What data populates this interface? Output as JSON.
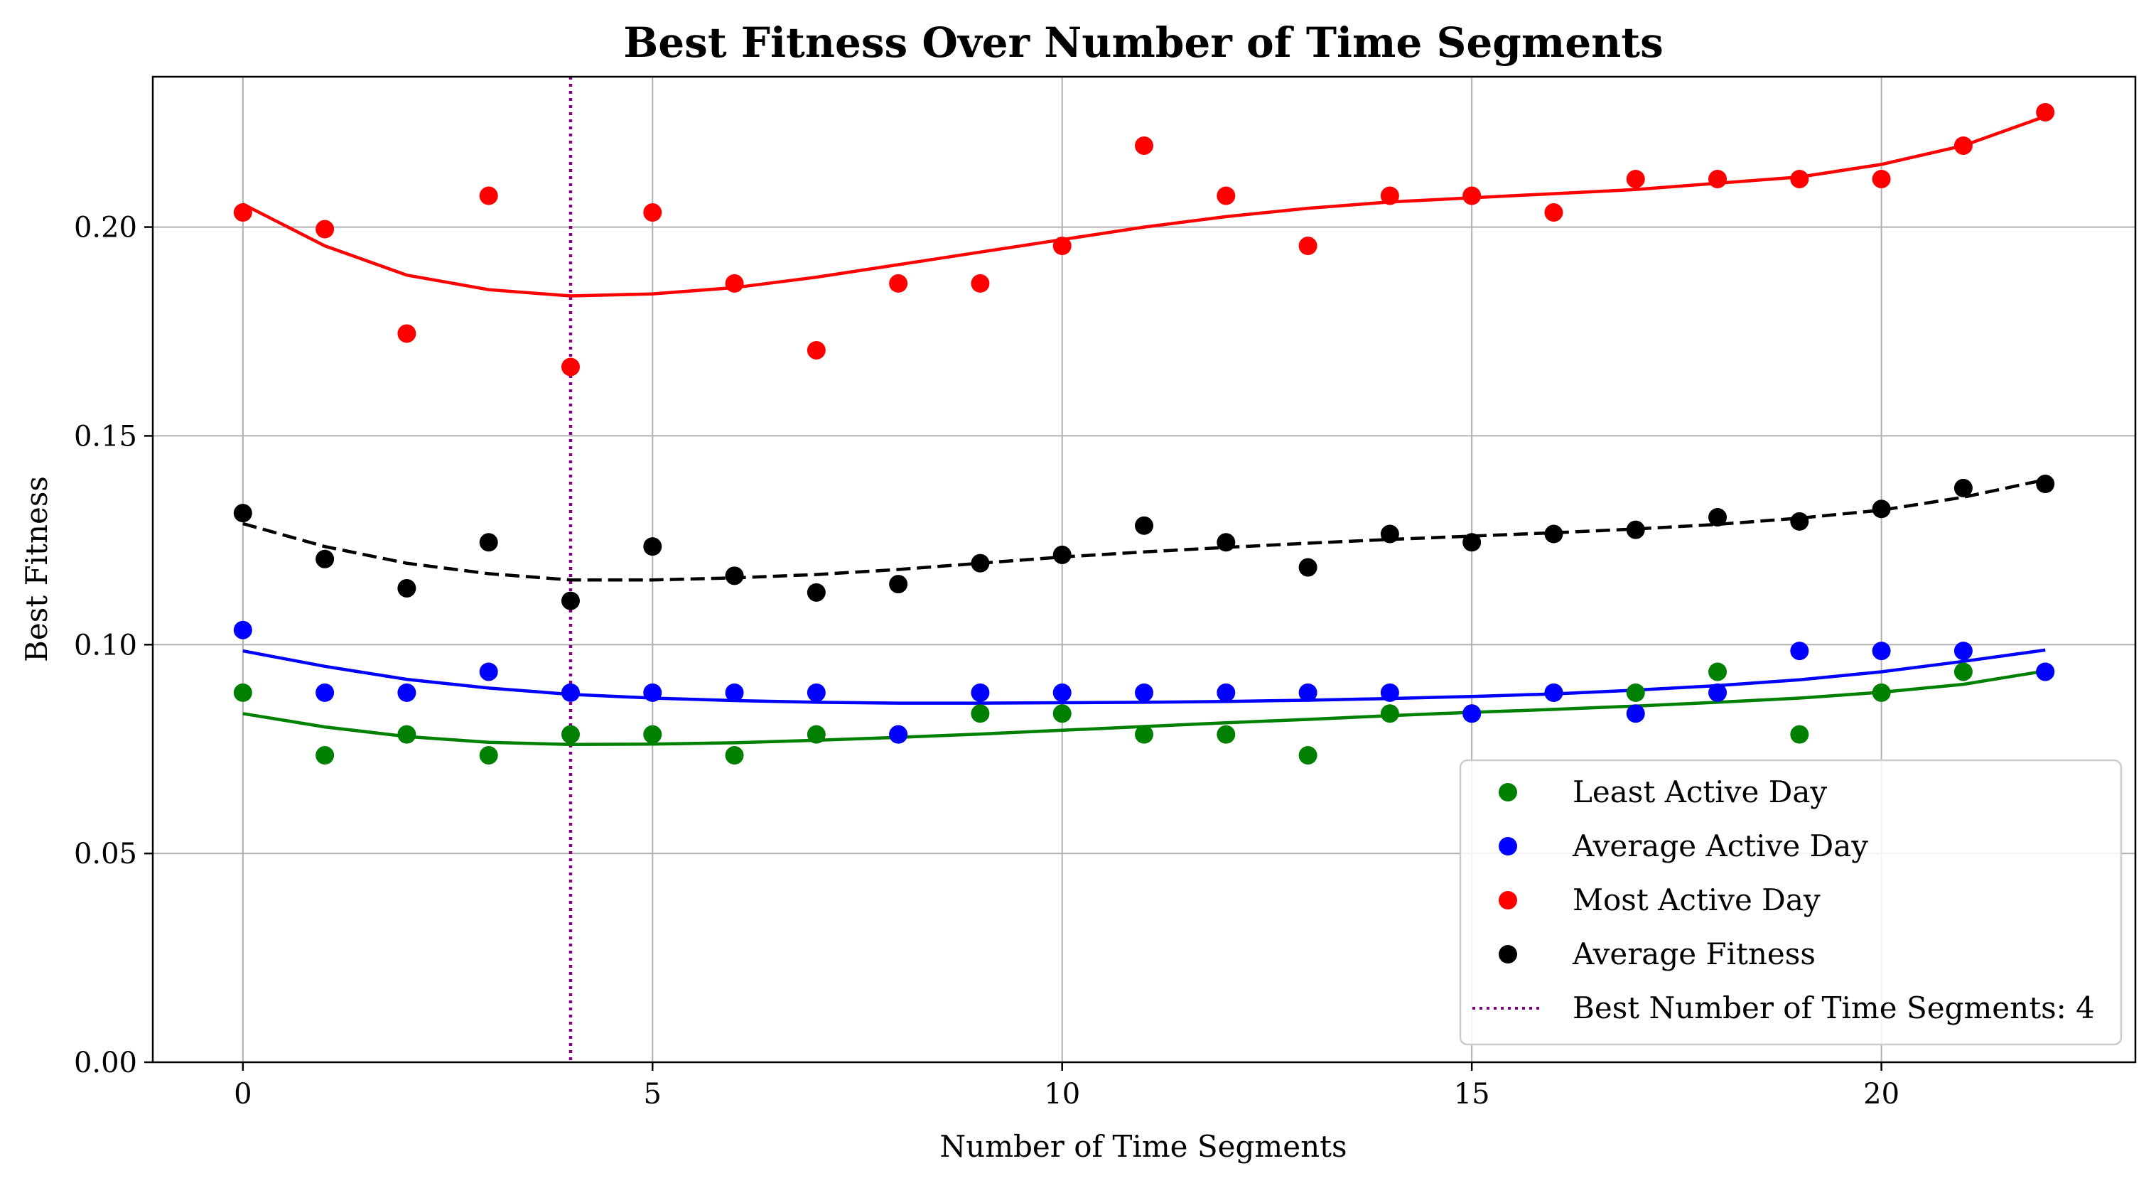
{
  "chart_data": {
    "type": "scatter",
    "title": "Best Fitness Over Number of Time Segments",
    "xlabel": "Number of Time Segments",
    "ylabel": "Best Fitness",
    "xlim": [
      -1.1,
      23.1
    ],
    "ylim": [
      0.0,
      0.236
    ],
    "xticks": [
      0,
      5,
      10,
      15,
      20
    ],
    "yticks": [
      0.0,
      0.05,
      0.1,
      0.15,
      0.2
    ],
    "xtick_labels": [
      "0",
      "5",
      "10",
      "15",
      "20"
    ],
    "ytick_labels": [
      "0.00",
      "0.05",
      "0.10",
      "0.15",
      "0.20"
    ],
    "grid": true,
    "legend_position": "lower-right",
    "x": [
      0,
      1,
      2,
      3,
      4,
      5,
      6,
      7,
      8,
      9,
      10,
      11,
      12,
      13,
      14,
      15,
      16,
      17,
      18,
      19,
      20,
      21,
      22
    ],
    "series": [
      {
        "name": "Least Active Day",
        "color": "#008000",
        "marker": "circle",
        "values": [
          0.0885,
          0.0735,
          0.0785,
          0.0735,
          0.0785,
          0.0785,
          0.0735,
          0.0785,
          0.0785,
          0.0835,
          0.0835,
          0.0785,
          0.0785,
          0.0735,
          0.0835,
          0.0835,
          0.0885,
          0.0885,
          0.0935,
          0.0785,
          0.0885,
          0.0935,
          0.0935
        ],
        "trend_values": [
          0.0835,
          0.0803,
          0.078,
          0.0766,
          0.0761,
          0.0762,
          0.0765,
          0.0771,
          0.0778,
          0.0786,
          0.0795,
          0.0804,
          0.0813,
          0.0821,
          0.083,
          0.0838,
          0.0845,
          0.0853,
          0.0862,
          0.0872,
          0.0886,
          0.0905,
          0.0937
        ],
        "trend_style": "solid"
      },
      {
        "name": "Average Active Day",
        "color": "#0000ff",
        "marker": "circle",
        "values": [
          0.1035,
          0.0885,
          0.0885,
          0.0935,
          0.0885,
          0.0885,
          0.0885,
          0.0885,
          0.0785,
          0.0885,
          0.0885,
          0.0885,
          0.0885,
          0.0885,
          0.0885,
          0.0835,
          0.0885,
          0.0835,
          0.0885,
          0.0985,
          0.0985,
          0.0985,
          0.0935
        ],
        "trend_values": [
          0.0985,
          0.0948,
          0.0917,
          0.0896,
          0.0881,
          0.0872,
          0.0866,
          0.0862,
          0.086,
          0.086,
          0.0861,
          0.0862,
          0.0864,
          0.0867,
          0.0871,
          0.0876,
          0.0882,
          0.0891,
          0.0902,
          0.0916,
          0.0935,
          0.096,
          0.0987
        ],
        "trend_style": "solid"
      },
      {
        "name": "Most Active Day",
        "color": "#ff0000",
        "marker": "circle",
        "values": [
          0.2035,
          0.1995,
          0.1745,
          0.2075,
          0.1665,
          0.2035,
          0.1865,
          0.1705,
          0.1865,
          0.1865,
          0.1955,
          0.2195,
          0.2075,
          0.1955,
          0.2075,
          0.2075,
          0.2035,
          0.2115,
          0.2115,
          0.2115,
          0.2115,
          0.2195,
          0.2275
        ],
        "trend_values": [
          0.2055,
          0.1955,
          0.1885,
          0.185,
          0.1835,
          0.184,
          0.1855,
          0.188,
          0.191,
          0.194,
          0.197,
          0.2,
          0.2025,
          0.2045,
          0.206,
          0.207,
          0.208,
          0.209,
          0.2105,
          0.212,
          0.215,
          0.2195,
          0.2265
        ],
        "trend_style": "solid"
      },
      {
        "name": "Average Fitness",
        "color": "#000000",
        "marker": "circle",
        "values": [
          0.1315,
          0.1205,
          0.1135,
          0.1245,
          0.1105,
          0.1235,
          0.1165,
          0.1125,
          0.1145,
          0.1195,
          0.1215,
          0.1285,
          0.1245,
          0.1185,
          0.1265,
          0.1245,
          0.1265,
          0.1275,
          0.1305,
          0.1295,
          0.1325,
          0.1375,
          0.1385
        ],
        "trend_values": [
          0.129,
          0.1235,
          0.1195,
          0.117,
          0.1155,
          0.1155,
          0.116,
          0.1168,
          0.118,
          0.1195,
          0.121,
          0.1222,
          0.1233,
          0.1243,
          0.1252,
          0.126,
          0.1268,
          0.1277,
          0.1288,
          0.1303,
          0.1322,
          0.1353,
          0.1395
        ],
        "trend_style": "dashed"
      }
    ],
    "vline": {
      "x": 4,
      "color": "#800080",
      "style": "dotted",
      "label": "Best Number of Time Segments: 4"
    }
  }
}
